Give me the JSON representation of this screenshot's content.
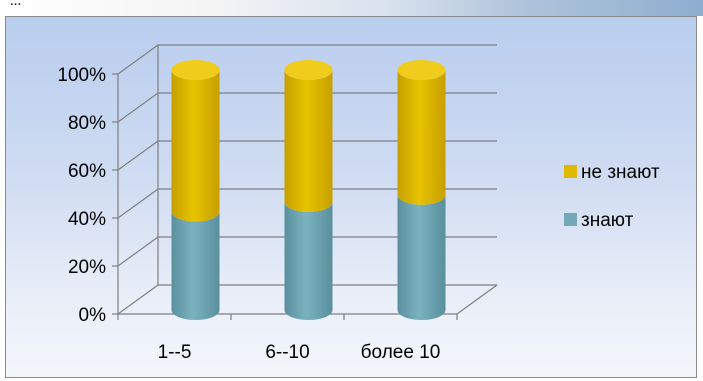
{
  "header_fragment": "...",
  "chart_data": {
    "type": "bar",
    "stacked": true,
    "style": "3d-cylinder",
    "categories": [
      "1--5",
      "6--10",
      "более 10"
    ],
    "series": [
      {
        "name": "знают",
        "values": [
          41,
          45,
          48
        ],
        "color": "#73a9b7"
      },
      {
        "name": "не знают",
        "values": [
          59,
          55,
          52
        ],
        "color": "#e0b800"
      }
    ],
    "y_ticks": [
      "0%",
      "20%",
      "40%",
      "60%",
      "80%",
      "100%"
    ],
    "ylim": [
      0,
      100
    ],
    "grid": true,
    "legend_position": "right",
    "legend_order": [
      "не знают",
      "знают"
    ],
    "title": "",
    "xlabel": "",
    "ylabel": ""
  }
}
